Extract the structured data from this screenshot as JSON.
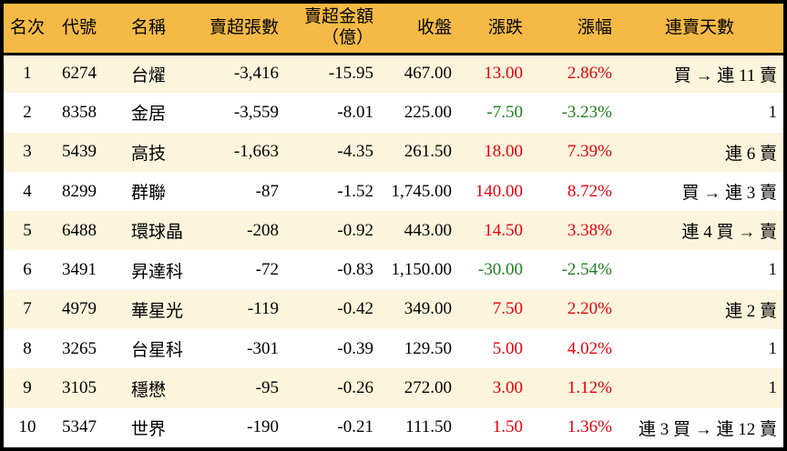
{
  "chart_data": {
    "type": "table",
    "headers": {
      "rank": "名次",
      "code": "代號",
      "name": "名稱",
      "sell_volume": "賣超張數",
      "sell_amount_line1": "賣超金額",
      "sell_amount_line2": "（億）",
      "close": "收盤",
      "change": "漲跌",
      "change_pct": "漲幅",
      "streak": "連賣天數"
    },
    "rows": [
      {
        "rank": "1",
        "code": "6274",
        "name": "台燿",
        "sell_volume": "-3,416",
        "sell_amount": "-15.95",
        "close": "467.00",
        "change": "13.00",
        "change_pct": "2.86%",
        "streak": "買 → 連 11 賣",
        "direction": "up"
      },
      {
        "rank": "2",
        "code": "8358",
        "name": "金居",
        "sell_volume": "-3,559",
        "sell_amount": "-8.01",
        "close": "225.00",
        "change": "-7.50",
        "change_pct": "-3.23%",
        "streak": "1",
        "direction": "down"
      },
      {
        "rank": "3",
        "code": "5439",
        "name": "高技",
        "sell_volume": "-1,663",
        "sell_amount": "-4.35",
        "close": "261.50",
        "change": "18.00",
        "change_pct": "7.39%",
        "streak": "連 6 賣",
        "direction": "up"
      },
      {
        "rank": "4",
        "code": "8299",
        "name": "群聯",
        "sell_volume": "-87",
        "sell_amount": "-1.52",
        "close": "1,745.00",
        "change": "140.00",
        "change_pct": "8.72%",
        "streak": "買 → 連 3 賣",
        "direction": "up"
      },
      {
        "rank": "5",
        "code": "6488",
        "name": "環球晶",
        "sell_volume": "-208",
        "sell_amount": "-0.92",
        "close": "443.00",
        "change": "14.50",
        "change_pct": "3.38%",
        "streak": "連 4 買 → 賣",
        "direction": "up"
      },
      {
        "rank": "6",
        "code": "3491",
        "name": "昇達科",
        "sell_volume": "-72",
        "sell_amount": "-0.83",
        "close": "1,150.00",
        "change": "-30.00",
        "change_pct": "-2.54%",
        "streak": "1",
        "direction": "down"
      },
      {
        "rank": "7",
        "code": "4979",
        "name": "華星光",
        "sell_volume": "-119",
        "sell_amount": "-0.42",
        "close": "349.00",
        "change": "7.50",
        "change_pct": "2.20%",
        "streak": "連 2 賣",
        "direction": "up"
      },
      {
        "rank": "8",
        "code": "3265",
        "name": "台星科",
        "sell_volume": "-301",
        "sell_amount": "-0.39",
        "close": "129.50",
        "change": "5.00",
        "change_pct": "4.02%",
        "streak": "1",
        "direction": "up"
      },
      {
        "rank": "9",
        "code": "3105",
        "name": "穩懋",
        "sell_volume": "-95",
        "sell_amount": "-0.26",
        "close": "272.00",
        "change": "3.00",
        "change_pct": "1.12%",
        "streak": "1",
        "direction": "up"
      },
      {
        "rank": "10",
        "code": "5347",
        "name": "世界",
        "sell_volume": "-190",
        "sell_amount": "-0.21",
        "close": "111.50",
        "change": "1.50",
        "change_pct": "1.36%",
        "streak": "連 3 買 → 連 12 賣",
        "direction": "up"
      }
    ]
  },
  "colors": {
    "header_bg": "#F5BA45",
    "row_alt_bg": "#FCF4DC",
    "row_bg": "#FFFFFF",
    "up_red": "#E8000D",
    "down_green": "#1E7E1E",
    "border": "#000000",
    "text": "#000000"
  }
}
